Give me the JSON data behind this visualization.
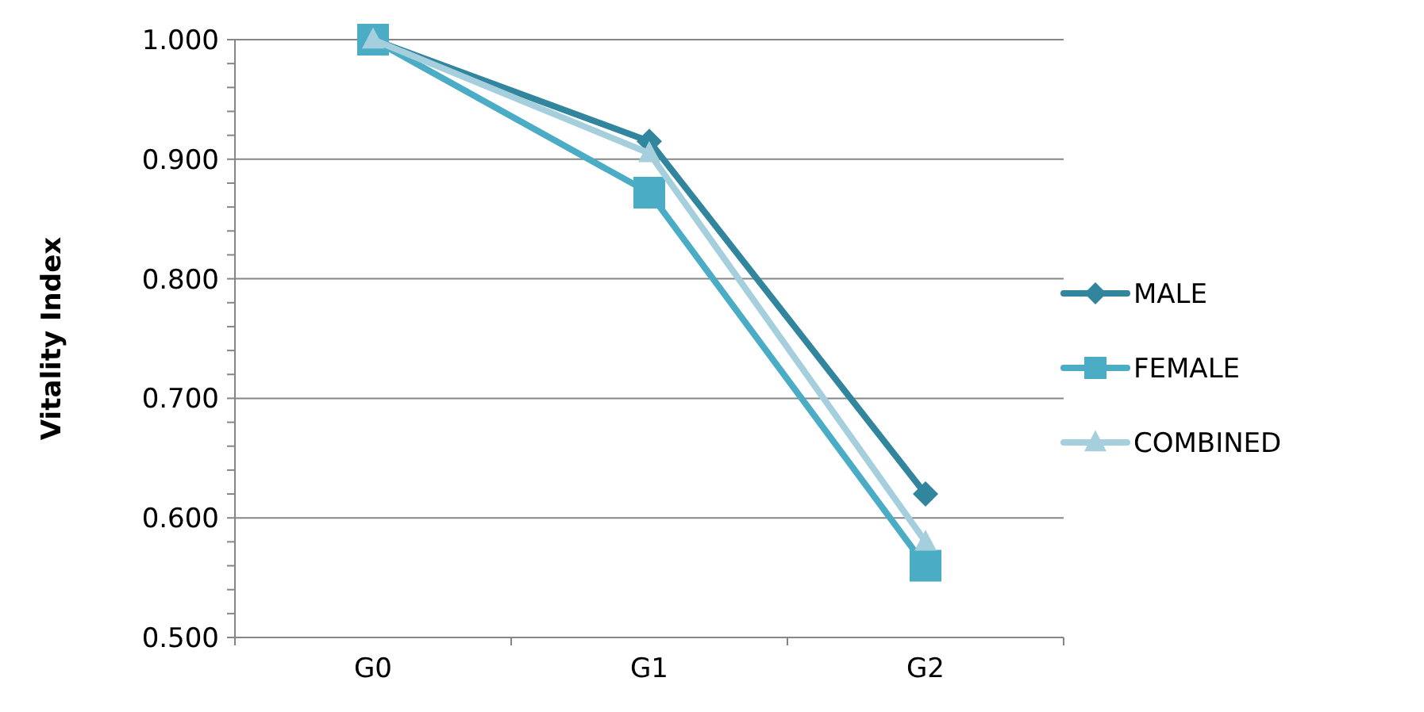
{
  "chart_data": {
    "type": "line",
    "ylabel": "Vitality Index",
    "categories": [
      "G0",
      "G1",
      "G2"
    ],
    "series": [
      {
        "name": "MALE",
        "color": "#31859c",
        "marker": "diamond",
        "values": [
          1.0,
          0.915,
          0.62
        ]
      },
      {
        "name": "FEMALE",
        "color": "#4bacc6",
        "marker": "square",
        "values": [
          1.0,
          0.872,
          0.56
        ]
      },
      {
        "name": "COMBINED",
        "color": "#a5cfdc",
        "marker": "triangle",
        "values": [
          1.0,
          0.905,
          0.58
        ]
      }
    ],
    "ylim": [
      0.5,
      1.0
    ],
    "yticks": [
      {
        "value": 0.5,
        "label": "0.500"
      },
      {
        "value": 0.52,
        "label": null
      },
      {
        "value": 0.54,
        "label": null
      },
      {
        "value": 0.56,
        "label": null
      },
      {
        "value": 0.58,
        "label": null
      },
      {
        "value": 0.6,
        "label": "0.600"
      },
      {
        "value": 0.62,
        "label": null
      },
      {
        "value": 0.64,
        "label": null
      },
      {
        "value": 0.66,
        "label": null
      },
      {
        "value": 0.68,
        "label": null
      },
      {
        "value": 0.7,
        "label": "0.700"
      },
      {
        "value": 0.72,
        "label": null
      },
      {
        "value": 0.74,
        "label": null
      },
      {
        "value": 0.76,
        "label": null
      },
      {
        "value": 0.78,
        "label": null
      },
      {
        "value": 0.8,
        "label": "0.800"
      },
      {
        "value": 0.82,
        "label": null
      },
      {
        "value": 0.84,
        "label": null
      },
      {
        "value": 0.86,
        "label": null
      },
      {
        "value": 0.88,
        "label": null
      },
      {
        "value": 0.9,
        "label": "0.900"
      },
      {
        "value": 0.92,
        "label": null
      },
      {
        "value": 0.94,
        "label": null
      },
      {
        "value": 0.96,
        "label": null
      },
      {
        "value": 0.98,
        "label": null
      },
      {
        "value": 1.0,
        "label": "1.000"
      }
    ],
    "grid": "y",
    "legend": "right",
    "line_style": "solid"
  }
}
